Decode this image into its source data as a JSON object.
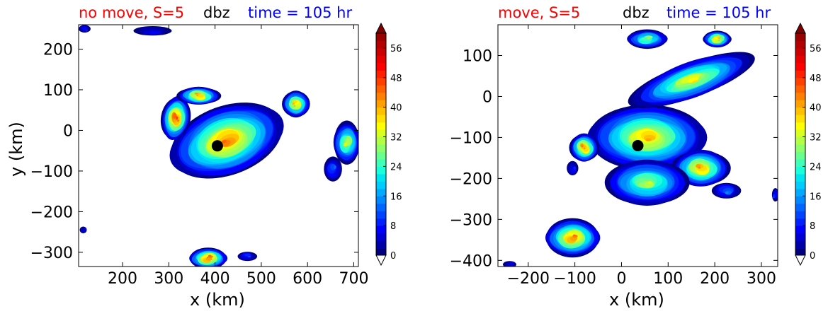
{
  "chart_data": [
    {
      "type": "heatmap",
      "title_left": "no move, S=5",
      "title_center": "dbz",
      "title_right": "time = 105 hr",
      "xlabel": "x (km)",
      "ylabel": "y (km)",
      "xlim": [
        105,
        710
      ],
      "ylim": [
        -335,
        260
      ],
      "xticks": [
        200,
        300,
        400,
        500,
        600,
        700
      ],
      "yticks": [
        200,
        100,
        0,
        -100,
        -200,
        -300
      ],
      "xtick_labels": [
        "200",
        "300",
        "400",
        "500",
        "600",
        "700"
      ],
      "ytick_labels": [
        "200",
        "100",
        "0",
        "−100",
        "−200",
        "−300"
      ],
      "center_marker": {
        "x": 405,
        "y": -38
      },
      "cells": [
        {
          "x": 425,
          "y": -25,
          "rx": 125,
          "ry": 85,
          "rot": -20,
          "peak": 44
        },
        {
          "x": 315,
          "y": 30,
          "rx": 30,
          "ry": 55,
          "rot": 10,
          "peak": 48
        },
        {
          "x": 365,
          "y": 85,
          "rx": 45,
          "ry": 22,
          "rot": 0,
          "peak": 42
        },
        {
          "x": 575,
          "y": 65,
          "rx": 30,
          "ry": 32,
          "rot": 0,
          "peak": 40
        },
        {
          "x": 385,
          "y": -315,
          "rx": 42,
          "ry": 25,
          "rot": 0,
          "peak": 46
        },
        {
          "x": 685,
          "y": -30,
          "rx": 30,
          "ry": 50,
          "rot": 0,
          "peak": 34
        },
        {
          "x": 655,
          "y": -95,
          "rx": 20,
          "ry": 30,
          "rot": 0,
          "peak": 12
        },
        {
          "x": 470,
          "y": -310,
          "rx": 20,
          "ry": 12,
          "rot": 0,
          "peak": 10
        },
        {
          "x": 118,
          "y": 250,
          "rx": 12,
          "ry": 10,
          "rot": 0,
          "peak": 8
        },
        {
          "x": 265,
          "y": 245,
          "rx": 40,
          "ry": 12,
          "rot": 0,
          "peak": 6
        },
        {
          "x": 115,
          "y": -245,
          "rx": 8,
          "ry": 8,
          "rot": 0,
          "peak": 6
        }
      ]
    },
    {
      "type": "heatmap",
      "title_left": "move, S=5",
      "title_center": "dbz",
      "title_right": "time = 105 hr",
      "xlabel": "x (km)",
      "ylabel": "",
      "xlim": [
        -265,
        335
      ],
      "ylim": [
        -415,
        175
      ],
      "xticks": [
        -200,
        -100,
        0,
        100,
        200,
        300
      ],
      "yticks": [
        100,
        0,
        -100,
        -200,
        -300,
        -400
      ],
      "xtick_labels": [
        "−200",
        "−100",
        "0",
        "100",
        "200",
        "300"
      ],
      "ytick_labels": [
        "100",
        "0",
        "−100",
        "−200",
        "−300",
        "−400"
      ],
      "center_marker": {
        "x": 35,
        "y": -120
      },
      "cells": [
        {
          "x": 55,
          "y": -100,
          "rx": 125,
          "ry": 80,
          "rot": 0,
          "peak": 40
        },
        {
          "x": 150,
          "y": 40,
          "rx": 135,
          "ry": 45,
          "rot": -20,
          "peak": 36
        },
        {
          "x": 170,
          "y": -175,
          "rx": 60,
          "ry": 45,
          "rot": 0,
          "peak": 42
        },
        {
          "x": 55,
          "y": -210,
          "rx": 90,
          "ry": 55,
          "rot": 0,
          "peak": 32
        },
        {
          "x": -105,
          "y": -345,
          "rx": 60,
          "ry": 45,
          "rot": 0,
          "peak": 44
        },
        {
          "x": 55,
          "y": 140,
          "rx": 45,
          "ry": 22,
          "rot": 0,
          "peak": 30
        },
        {
          "x": 205,
          "y": 140,
          "rx": 30,
          "ry": 20,
          "rot": 0,
          "peak": 40
        },
        {
          "x": 225,
          "y": -230,
          "rx": 30,
          "ry": 20,
          "rot": 0,
          "peak": 14
        },
        {
          "x": -80,
          "y": -125,
          "rx": 30,
          "ry": 35,
          "rot": 0,
          "peak": 44
        },
        {
          "x": -105,
          "y": -175,
          "rx": 12,
          "ry": 18,
          "rot": 0,
          "peak": 8
        },
        {
          "x": -240,
          "y": -410,
          "rx": 15,
          "ry": 8,
          "rot": 0,
          "peak": 6
        },
        {
          "x": 330,
          "y": -240,
          "rx": 8,
          "ry": 15,
          "rot": 0,
          "peak": 10
        }
      ]
    }
  ],
  "colorbar": {
    "ticks": [
      0,
      8,
      16,
      24,
      32,
      40,
      48,
      56
    ],
    "tick_labels": [
      "0",
      "8",
      "16",
      "24",
      "32",
      "40",
      "48",
      "56"
    ],
    "levels": [
      0,
      60
    ],
    "step": 2,
    "extend": "both",
    "colors": [
      "#000080",
      "#0000aa",
      "#0000d4",
      "#0000ff",
      "#0022ff",
      "#0044ff",
      "#0066ff",
      "#0088ff",
      "#00aaff",
      "#00ccff",
      "#00e6f0",
      "#1affd9",
      "#40ffb8",
      "#66ff90",
      "#8cff6a",
      "#b3ff44",
      "#d9ff20",
      "#ffff00",
      "#ffe000",
      "#ffc000",
      "#ffa000",
      "#ff8000",
      "#ff6000",
      "#ff4000",
      "#ff2000",
      "#ff0000",
      "#e60000",
      "#cc0000",
      "#b30000",
      "#990000"
    ],
    "under_color": "#ffffff",
    "over_color": "#800000"
  }
}
